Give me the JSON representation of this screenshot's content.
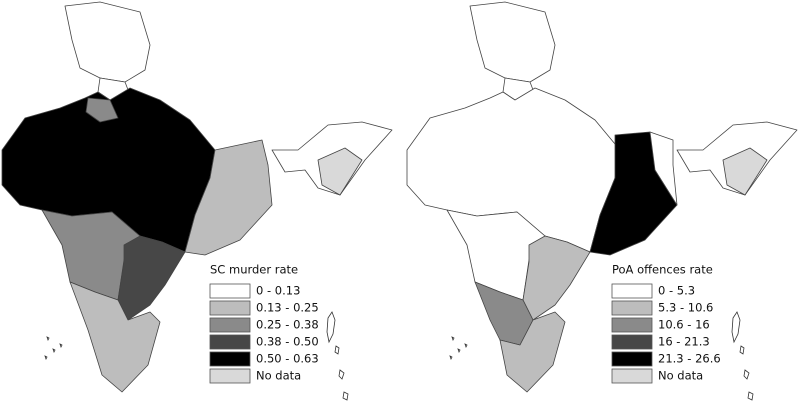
{
  "maps": [
    {
      "legend_title": "SC murder rate",
      "legend": [
        {
          "label": "0 - 0.13",
          "color": "#ffffff"
        },
        {
          "label": "0.13 - 0.25",
          "color": "#bdbdbd"
        },
        {
          "label": "0.25 - 0.38",
          "color": "#8a8a8a"
        },
        {
          "label": "0.38 - 0.50",
          "color": "#474747"
        },
        {
          "label": "0.50 - 0.63",
          "color": "#000000"
        },
        {
          "label": "No data",
          "color": "#d9d9d9"
        }
      ]
    },
    {
      "legend_title": "PoA offences rate",
      "legend": [
        {
          "label": "0 - 5.3",
          "color": "#ffffff"
        },
        {
          "label": "5.3 - 10.6",
          "color": "#bdbdbd"
        },
        {
          "label": "10.6 - 16",
          "color": "#8a8a8a"
        },
        {
          "label": "16 - 21.3",
          "color": "#474747"
        },
        {
          "label": "21.3 - 26.6",
          "color": "#000000"
        },
        {
          "label": "No data",
          "color": "#d9d9d9"
        }
      ]
    }
  ]
}
